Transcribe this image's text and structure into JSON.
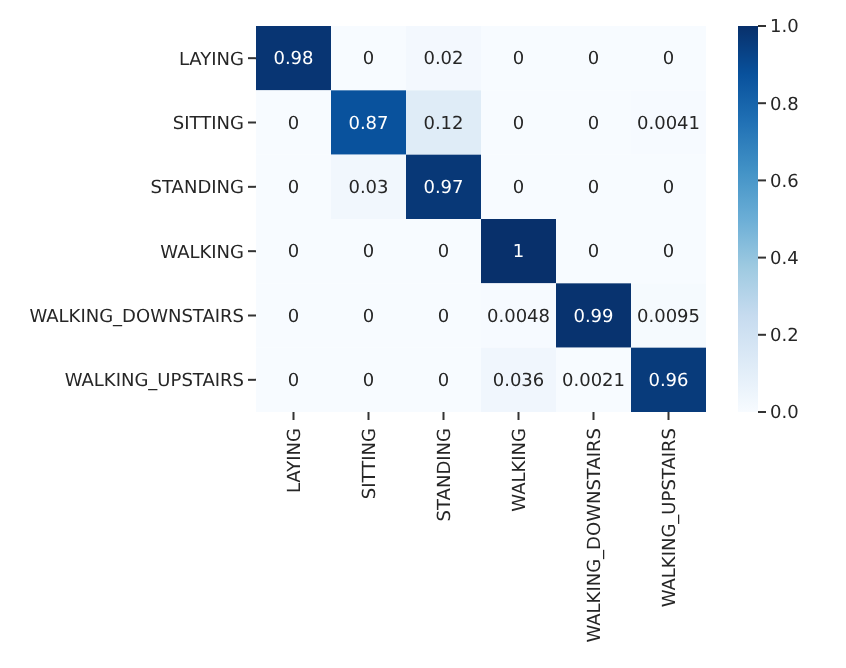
{
  "chart_data": {
    "type": "heatmap",
    "categories": [
      "LAYING",
      "SITTING",
      "STANDING",
      "WALKING",
      "WALKING_DOWNSTAIRS",
      "WALKING_UPSTAIRS"
    ],
    "y_categories": [
      "LAYING",
      "SITTING",
      "STANDING",
      "WALKING",
      "WALKING_DOWNSTAIRS",
      "WALKING_UPSTAIRS"
    ],
    "cells": [
      [
        0.98,
        0,
        0.02,
        0,
        0,
        0
      ],
      [
        0,
        0.87,
        0.12,
        0,
        0,
        0.0041
      ],
      [
        0,
        0.03,
        0.97,
        0,
        0,
        0
      ],
      [
        0,
        0,
        0,
        1,
        0,
        0
      ],
      [
        0,
        0,
        0,
        0.0048,
        0.99,
        0.0095
      ],
      [
        0,
        0,
        0,
        0.036,
        0.0021,
        0.96
      ]
    ],
    "data_labels": true,
    "clim": [
      0,
      1
    ],
    "cticks": [
      {
        "value": 0,
        "label": "0.0"
      },
      {
        "value": 0.2,
        "label": "0.2"
      },
      {
        "value": 0.4,
        "label": "0.4"
      },
      {
        "value": 0.6,
        "label": "0.6"
      },
      {
        "value": 0.8,
        "label": "0.8"
      },
      {
        "value": 1,
        "label": "1.0"
      }
    ]
  }
}
